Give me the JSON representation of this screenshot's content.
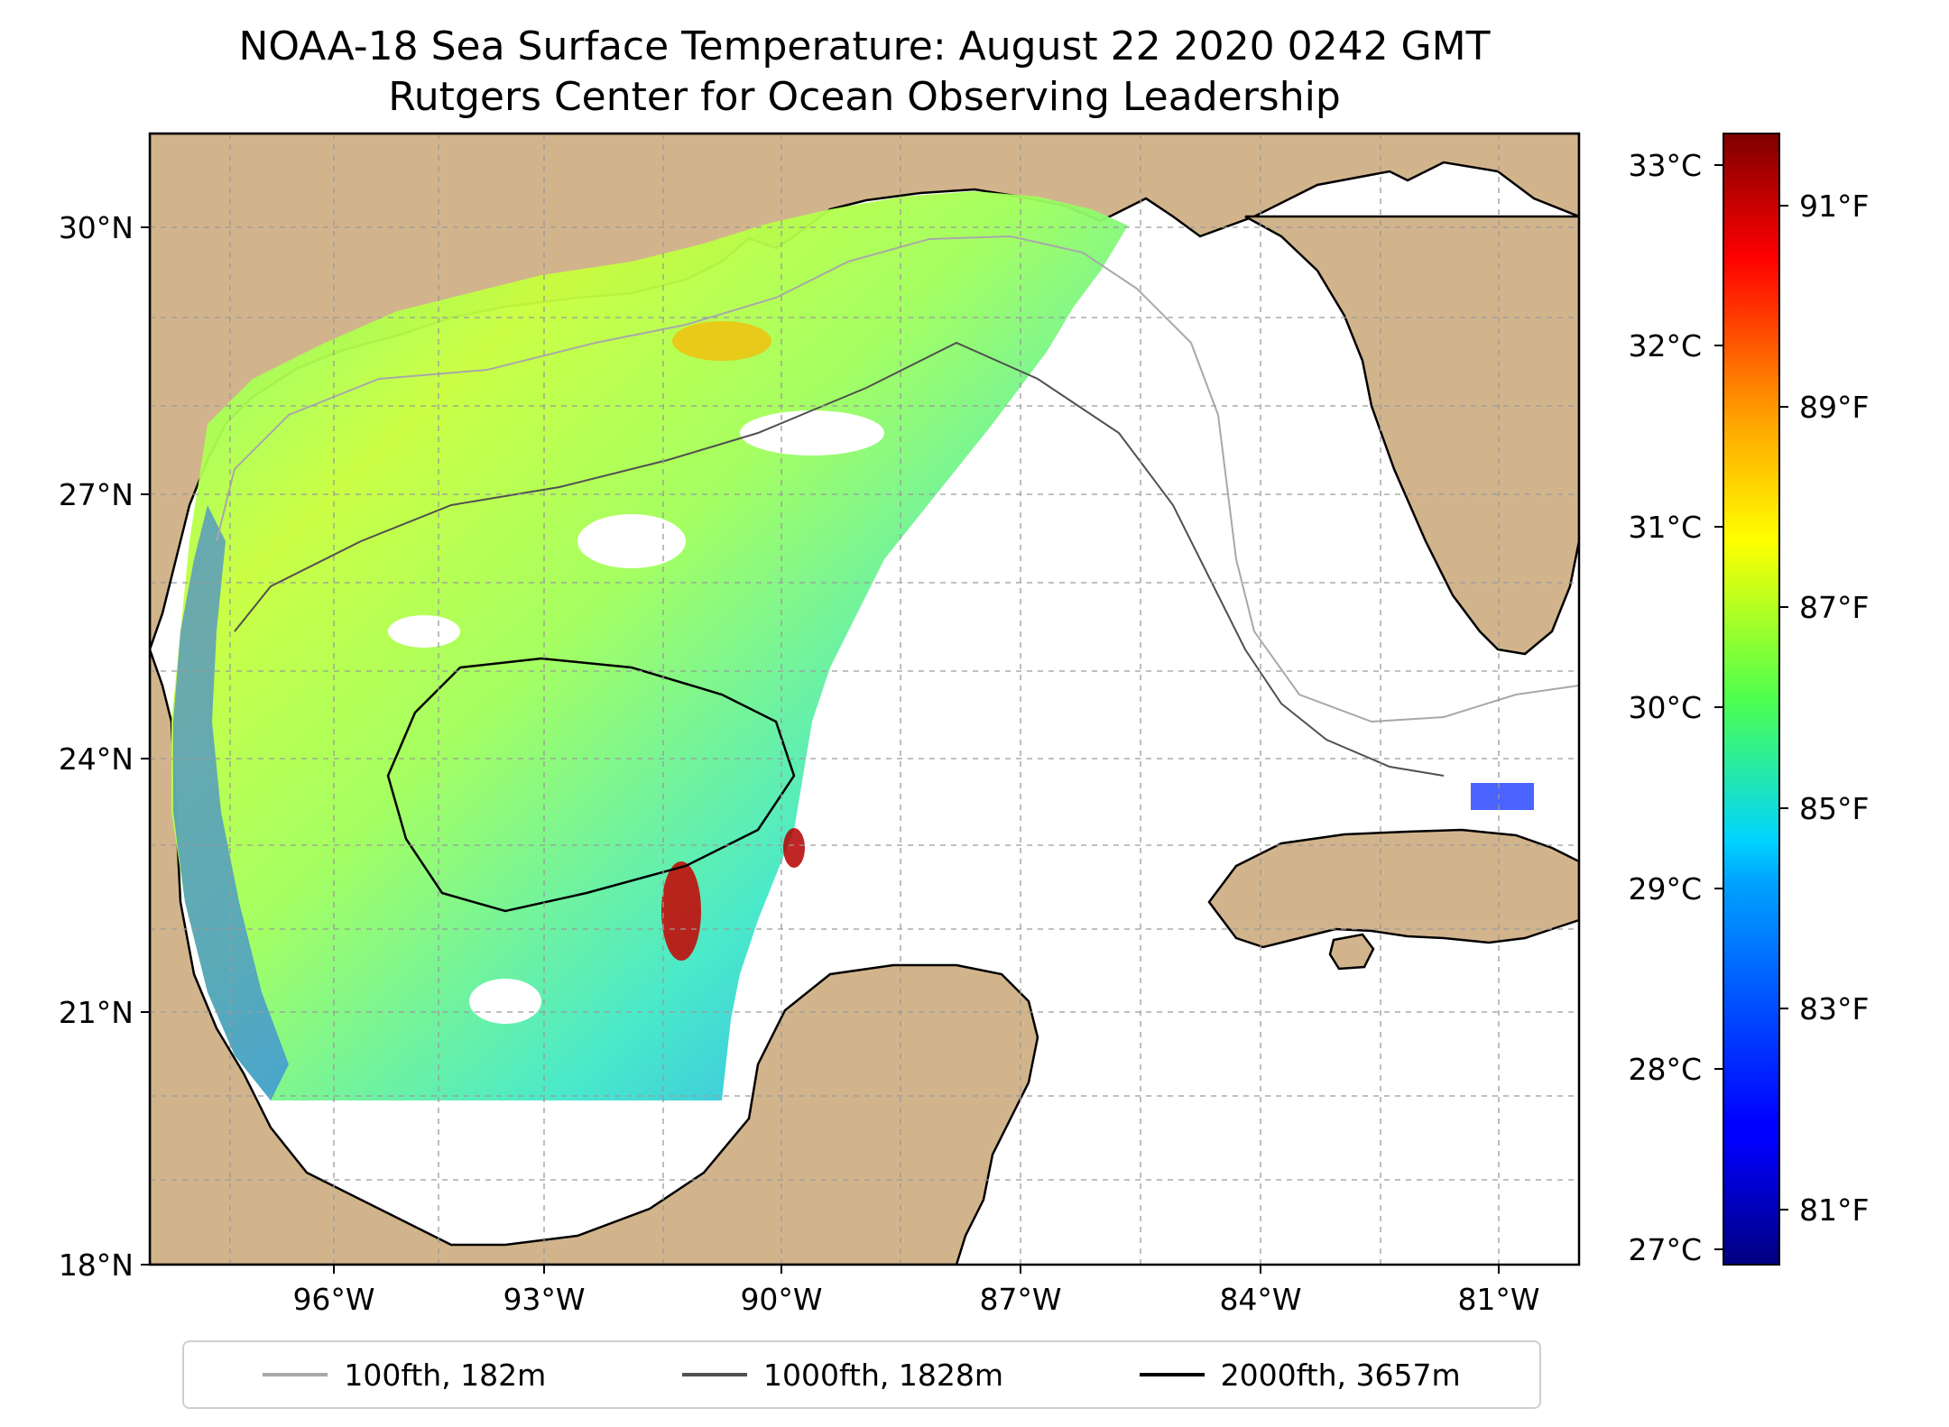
{
  "title": {
    "line1": "NOAA-18 Sea Surface Temperature: August 22 2020 0242 GMT",
    "line2": "Rutgers Center for Ocean Observing Leadership"
  },
  "map": {
    "lon_range": [
      -98.0,
      -80.3
    ],
    "lat_range": [
      18.0,
      31.0
    ],
    "lat_ticks": [
      {
        "value": 30,
        "label": "30°N"
      },
      {
        "value": 27,
        "label": "27°N"
      },
      {
        "value": 24,
        "label": "24°N"
      },
      {
        "value": 21,
        "label": "21°N"
      },
      {
        "value": 18,
        "label": "18°N"
      }
    ],
    "lon_ticks": [
      {
        "value": -96,
        "label": "96°W"
      },
      {
        "value": -93,
        "label": "93°W"
      },
      {
        "value": -90,
        "label": "90°W"
      },
      {
        "value": -87,
        "label": "87°W"
      },
      {
        "value": -84,
        "label": "84°W"
      },
      {
        "value": -81,
        "label": "81°W"
      }
    ],
    "grid": true,
    "land_color": "#d2b48c",
    "lake_color": "#9db8e0",
    "no_data_color": "#ffffff"
  },
  "colorbar": {
    "colormap": "jet",
    "celsius_ticks": [
      {
        "value": 33,
        "label": "33°C"
      },
      {
        "value": 32,
        "label": "32°C"
      },
      {
        "value": 31,
        "label": "31°C"
      },
      {
        "value": 30,
        "label": "30°C"
      },
      {
        "value": 29,
        "label": "29°C"
      },
      {
        "value": 28,
        "label": "28°C"
      },
      {
        "value": 27,
        "label": "27°C"
      }
    ],
    "fahrenheit_ticks": [
      {
        "value": 91,
        "label": "91°F"
      },
      {
        "value": 89,
        "label": "89°F"
      },
      {
        "value": 87,
        "label": "87°F"
      },
      {
        "value": 85,
        "label": "85°F"
      },
      {
        "value": 83,
        "label": "83°F"
      },
      {
        "value": 81,
        "label": "81°F"
      }
    ],
    "range_c": [
      26.9,
      33.2
    ]
  },
  "legend": [
    {
      "label": "100fth, 182m",
      "color": "#a8a8a8"
    },
    {
      "label": "1000fth, 1828m",
      "color": "#505050"
    },
    {
      "label": "2000fth, 3657m",
      "color": "#000000"
    }
  ]
}
